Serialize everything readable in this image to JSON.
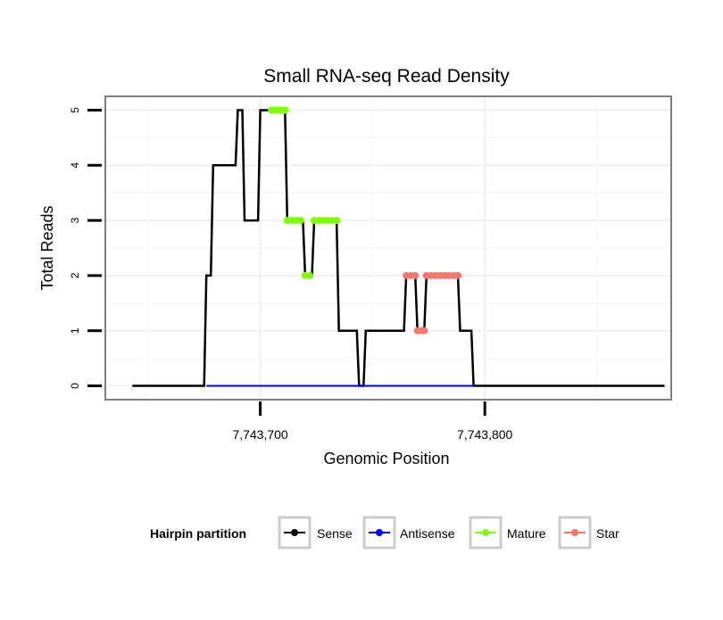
{
  "chart_data": {
    "type": "line",
    "title": "Small RNA-seq Read Density",
    "xlabel": "Genomic Position",
    "ylabel": "Total Reads",
    "xlim": [
      7743631,
      7743883
    ],
    "ylim": [
      -0.25,
      5.25
    ],
    "x_ticks": [
      {
        "value": 7743700,
        "label": "7,743,700"
      },
      {
        "value": 7743800,
        "label": "7,743,800"
      }
    ],
    "y_ticks": [
      {
        "value": 0,
        "label": "0"
      },
      {
        "value": 1,
        "label": "1"
      },
      {
        "value": 2,
        "label": "2"
      },
      {
        "value": 3,
        "label": "3"
      },
      {
        "value": 4,
        "label": "4"
      },
      {
        "value": 5,
        "label": "5"
      }
    ],
    "grid": true,
    "series": [
      {
        "name": "Sense",
        "color": "#000000",
        "style": "line",
        "points": [
          [
            7743643,
            0
          ],
          [
            7743675,
            0
          ],
          [
            7743676,
            2
          ],
          [
            7743678,
            2
          ],
          [
            7743679,
            4
          ],
          [
            7743689,
            4
          ],
          [
            7743690,
            5
          ],
          [
            7743692,
            5
          ],
          [
            7743693,
            3
          ],
          [
            7743699,
            3
          ],
          [
            7743700,
            5
          ],
          [
            7743711,
            5
          ],
          [
            7743712,
            3
          ],
          [
            7743719,
            3
          ],
          [
            7743720,
            2
          ],
          [
            7743723,
            2
          ],
          [
            7743724,
            3
          ],
          [
            7743734,
            3
          ],
          [
            7743735,
            1
          ],
          [
            7743743,
            1
          ],
          [
            7743744,
            0
          ],
          [
            7743746,
            0
          ],
          [
            7743747,
            1
          ],
          [
            7743764,
            1
          ],
          [
            7743765,
            2
          ],
          [
            7743769,
            2
          ],
          [
            7743770,
            1
          ],
          [
            7743773,
            1
          ],
          [
            7743774,
            2
          ],
          [
            7743788,
            2
          ],
          [
            7743789,
            1
          ],
          [
            7743794,
            1
          ],
          [
            7743795,
            0
          ],
          [
            7743880,
            0
          ]
        ]
      },
      {
        "name": "Antisense",
        "color": "#0000ff",
        "style": "line",
        "points": [
          [
            7743676,
            0
          ],
          [
            7743795,
            0
          ]
        ]
      },
      {
        "name": "Mature",
        "color": "#7fff00",
        "style": "points",
        "points": [
          [
            7743705,
            5
          ],
          [
            7743707,
            5
          ],
          [
            7743709,
            5
          ],
          [
            7743711,
            5
          ],
          [
            7743712,
            3
          ],
          [
            7743714,
            3
          ],
          [
            7743716,
            3
          ],
          [
            7743718,
            3
          ],
          [
            7743720,
            2
          ],
          [
            7743722,
            2
          ],
          [
            7743724,
            3
          ],
          [
            7743726,
            3
          ],
          [
            7743728,
            3
          ],
          [
            7743730,
            3
          ],
          [
            7743732,
            3
          ],
          [
            7743734,
            3
          ]
        ]
      },
      {
        "name": "Star",
        "color": "#f8766d",
        "style": "points",
        "points": [
          [
            7743765,
            2
          ],
          [
            7743767,
            2
          ],
          [
            7743769,
            2
          ],
          [
            7743770,
            1
          ],
          [
            7743772,
            1
          ],
          [
            7743773,
            1
          ],
          [
            7743774,
            2
          ],
          [
            7743776,
            2
          ],
          [
            7743778,
            2
          ],
          [
            7743780,
            2
          ],
          [
            7743782,
            2
          ],
          [
            7743784,
            2
          ],
          [
            7743786,
            2
          ],
          [
            7743788,
            2
          ]
        ]
      }
    ],
    "legend": {
      "title": "Hairpin partition",
      "placement": "bottom",
      "entries": [
        {
          "label": "Sense",
          "color": "#000000"
        },
        {
          "label": "Antisense",
          "color": "#0000ff"
        },
        {
          "label": "Mature",
          "color": "#7fff00"
        },
        {
          "label": "Star",
          "color": "#f8766d"
        }
      ]
    }
  }
}
